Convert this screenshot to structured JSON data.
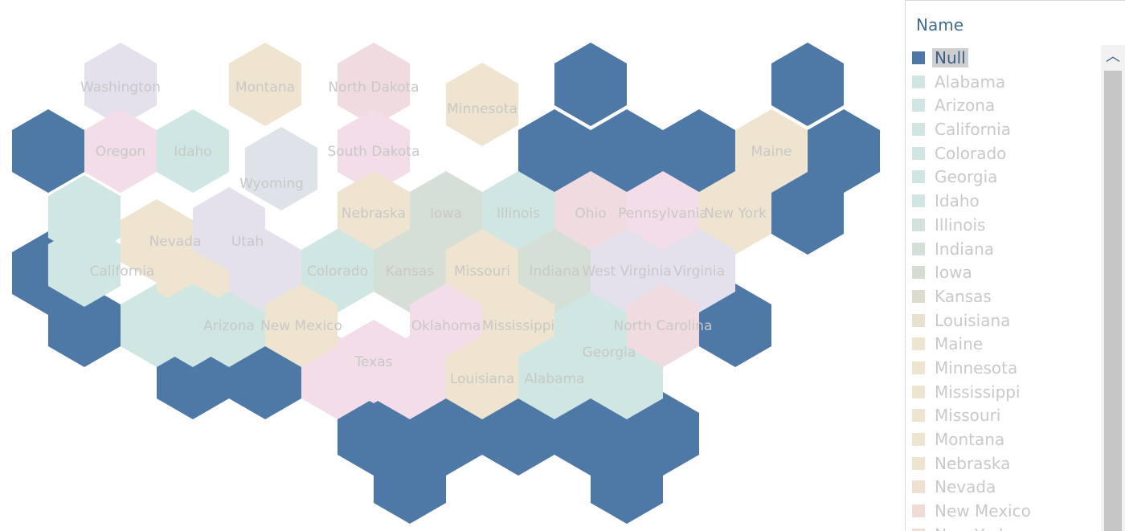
{
  "colors": {
    "null": "#4e78a6",
    "teal": "#cfe6e2",
    "sage": "#d6dfd6",
    "beige": "#efe4cf",
    "pink": "#f0dbe0",
    "lavender": "#e4e1ec",
    "blue_gray": "#dde3e8",
    "pink_light": "#f3dde8"
  },
  "map": {
    "states": [
      {
        "name": "Washington",
        "color": "lavender"
      },
      {
        "name": "Montana",
        "color": "beige"
      },
      {
        "name": "North Dakota",
        "color": "pink"
      },
      {
        "name": "Minnesota",
        "color": "beige"
      },
      {
        "name": "Oregon",
        "color": "pink_light"
      },
      {
        "name": "Idaho",
        "color": "teal"
      },
      {
        "name": "South Dakota",
        "color": "pink_light"
      },
      {
        "name": "Wyoming",
        "color": "blue_gray"
      },
      {
        "name": "Maine",
        "color": "beige"
      },
      {
        "name": "Nebraska",
        "color": "beige"
      },
      {
        "name": "Iowa",
        "color": "sage"
      },
      {
        "name": "Illinois",
        "color": "teal"
      },
      {
        "name": "Ohio",
        "color": "pink"
      },
      {
        "name": "Pennsylvania",
        "color": "pink_light"
      },
      {
        "name": "New York",
        "color": "beige"
      },
      {
        "name": "Nevada",
        "color": "beige"
      },
      {
        "name": "Utah",
        "color": "lavender"
      },
      {
        "name": "California",
        "color": "teal"
      },
      {
        "name": "Colorado",
        "color": "teal"
      },
      {
        "name": "Kansas",
        "color": "sage"
      },
      {
        "name": "Missouri",
        "color": "beige"
      },
      {
        "name": "Indiana",
        "color": "sage"
      },
      {
        "name": "West Virginia",
        "color": "lavender"
      },
      {
        "name": "Virginia",
        "color": "lavender"
      },
      {
        "name": "Arizona",
        "color": "teal"
      },
      {
        "name": "New Mexico",
        "color": "beige"
      },
      {
        "name": "Oklahoma",
        "color": "pink_light"
      },
      {
        "name": "Mississippi",
        "color": "beige"
      },
      {
        "name": "North Carolina",
        "color": "pink"
      },
      {
        "name": "Texas",
        "color": "pink_light"
      },
      {
        "name": "Georgia",
        "color": "teal"
      },
      {
        "name": "Louisiana",
        "color": "beige"
      },
      {
        "name": "Alabama",
        "color": "teal"
      }
    ]
  },
  "legend": {
    "title": "Name",
    "items": [
      {
        "label": "Null",
        "color": "#4e78a6",
        "selected": true
      },
      {
        "label": "Alabama",
        "color": "#cfe6e2"
      },
      {
        "label": "Arizona",
        "color": "#cfe6e2"
      },
      {
        "label": "California",
        "color": "#cfe6e2"
      },
      {
        "label": "Colorado",
        "color": "#cfe6e2"
      },
      {
        "label": "Georgia",
        "color": "#cfe6e2"
      },
      {
        "label": "Idaho",
        "color": "#cfe6e2"
      },
      {
        "label": "Illinois",
        "color": "#d2e3de"
      },
      {
        "label": "Indiana",
        "color": "#d3dfd7"
      },
      {
        "label": "Iowa",
        "color": "#d5ddd3"
      },
      {
        "label": "Kansas",
        "color": "#dbdccd"
      },
      {
        "label": "Louisiana",
        "color": "#e8e1cd"
      },
      {
        "label": "Maine",
        "color": "#efe4cf"
      },
      {
        "label": "Minnesota",
        "color": "#efe4cf"
      },
      {
        "label": "Mississippi",
        "color": "#efe4cf"
      },
      {
        "label": "Missouri",
        "color": "#efe4cf"
      },
      {
        "label": "Montana",
        "color": "#efe4cf"
      },
      {
        "label": "Nebraska",
        "color": "#efe4cf"
      },
      {
        "label": "Nevada",
        "color": "#efe0cf"
      },
      {
        "label": "New Mexico",
        "color": "#f0dcd4"
      },
      {
        "label": "New York",
        "color": "#f0dbd8"
      }
    ]
  },
  "scrollbar": {
    "up_icon": "chevron-up-icon",
    "up_glyph": "︿"
  }
}
